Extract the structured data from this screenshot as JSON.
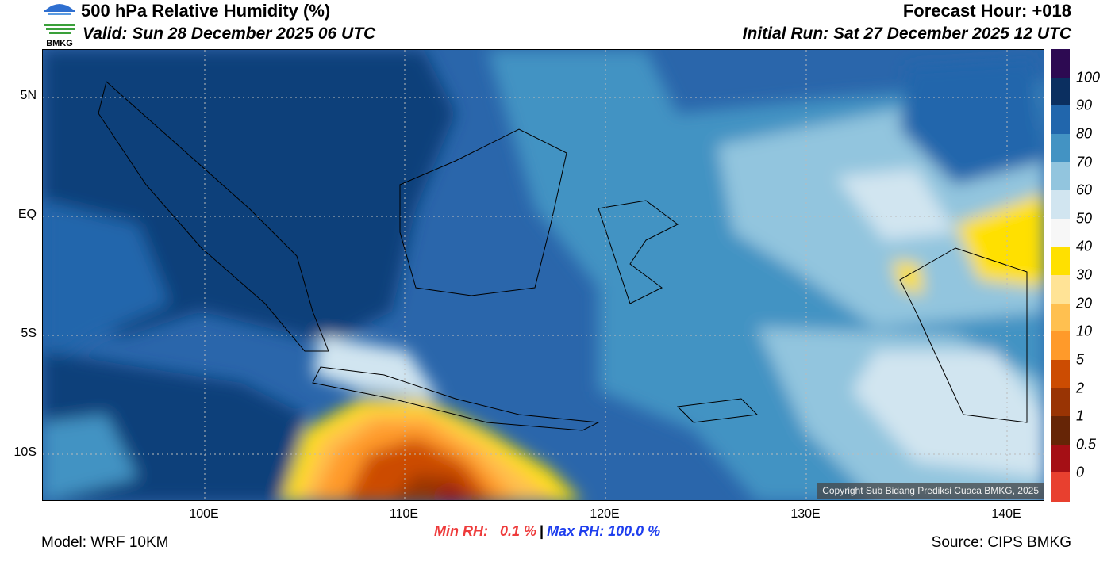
{
  "header": {
    "title": "500 hPa Relative Humidity (%)",
    "valid": "Valid: Sun 28 December 2025 06 UTC",
    "forecast_hour": "Forecast Hour: +018",
    "initial_run": "Initial Run: Sat 27 December 2025 12 UTC",
    "logo_text": "BMKG"
  },
  "axes": {
    "lat_labels": [
      "5N",
      "EQ",
      "5S",
      "10S"
    ],
    "lon_labels": [
      "100E",
      "110E",
      "120E",
      "130E",
      "140E"
    ]
  },
  "colorbar": {
    "labels": [
      "100",
      "90",
      "80",
      "70",
      "60",
      "50",
      "40",
      "30",
      "20",
      "10",
      "5",
      "2",
      "1",
      "0.5",
      "0"
    ],
    "colors": [
      "#2d0a52",
      "#0b2f60",
      "#2166ac",
      "#4393c3",
      "#92c5de",
      "#d1e5f0",
      "#f7f7f7",
      "#ffe000",
      "#ffe396",
      "#ffc050",
      "#ff9a2a",
      "#cc4c02",
      "#993404",
      "#662506",
      "#a50f15",
      "#e8402f"
    ]
  },
  "map": {
    "copyright": "Copyright Sub Bidang Prediksi Cuaca BMKG, 2025"
  },
  "footer": {
    "model": "Model: WRF 10KM",
    "source": "Source: CIPS BMKG",
    "min_rh": "Min RH:   0.1 %",
    "separator": "|",
    "max_rh": "Max RH: 100.0 %"
  }
}
